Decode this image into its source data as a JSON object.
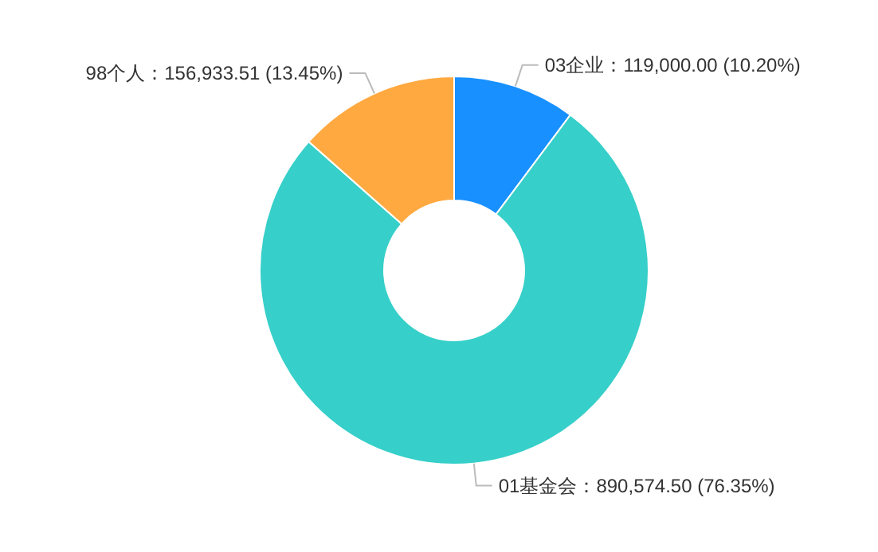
{
  "chart_data": {
    "type": "donut",
    "categories": [
      "03企业",
      "01基金会",
      "98个人"
    ],
    "values": [
      119000.0,
      890574.5,
      156933.51
    ],
    "value_labels": [
      "119,000.00 (10.20%)",
      "890,574.50 (76.35%)",
      "156,933.51 (13.45%)"
    ],
    "colors": [
      "#1890ff",
      "#36cfc9",
      "#ffa940"
    ]
  }
}
